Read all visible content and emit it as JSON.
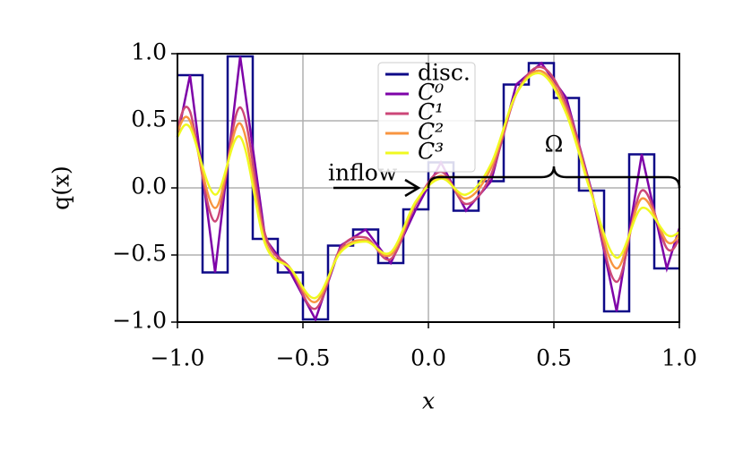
{
  "chart_data": {
    "type": "line",
    "xlabel": "x",
    "ylabel": "q(x)",
    "xlim": [
      -1,
      1
    ],
    "ylim": [
      -1,
      1
    ],
    "xticks": [
      {
        "value": -1,
        "label": "−1.0"
      },
      {
        "value": -0.5,
        "label": "−0.5"
      },
      {
        "value": 0,
        "label": "0.0"
      },
      {
        "value": 0.5,
        "label": "0.5"
      },
      {
        "value": 1,
        "label": "1.0"
      }
    ],
    "yticks": [
      {
        "value": -1,
        "label": "−1.0"
      },
      {
        "value": -0.5,
        "label": "−0.5"
      },
      {
        "value": 0,
        "label": "0.0"
      },
      {
        "value": 0.5,
        "label": "0.5"
      },
      {
        "value": 1,
        "label": "1.0"
      }
    ],
    "grid": true,
    "legend": "upper center",
    "annotations": [
      "inflow",
      "Ω"
    ],
    "series": [
      {
        "name": "disc.",
        "color": "#0d0887",
        "x": [
          -1,
          -0.9,
          -0.9,
          -0.8,
          -0.8,
          -0.7,
          -0.7,
          -0.6,
          -0.6,
          -0.5,
          -0.5,
          -0.4,
          -0.4,
          -0.3,
          -0.3,
          -0.2,
          -0.2,
          -0.1,
          -0.1,
          0,
          0,
          0.1,
          0.1,
          0.2,
          0.2,
          0.3,
          0.3,
          0.4,
          0.4,
          0.5,
          0.5,
          0.6,
          0.6,
          0.7,
          0.7,
          0.8,
          0.8,
          0.9,
          0.9,
          1
        ],
        "values": [
          0.84,
          0.84,
          -0.63,
          -0.63,
          0.98,
          0.98,
          -0.38,
          -0.38,
          -0.63,
          -0.63,
          -0.98,
          -0.98,
          -0.43,
          -0.43,
          -0.31,
          -0.31,
          -0.56,
          -0.56,
          -0.16,
          -0.16,
          0.19,
          0.19,
          -0.17,
          -0.17,
          0.05,
          0.05,
          0.77,
          0.77,
          0.93,
          0.93,
          0.67,
          0.67,
          -0.02,
          -0.02,
          -0.92,
          -0.92,
          0.25,
          0.25,
          -0.6,
          -0.6
        ]
      },
      {
        "name": "C⁰",
        "color": "#7e03a8",
        "x": [
          -1,
          -0.95,
          -0.85,
          -0.75,
          -0.65,
          -0.55,
          -0.45,
          -0.35,
          -0.25,
          -0.15,
          -0.05,
          0.05,
          0.15,
          0.25,
          0.35,
          0.45,
          0.55,
          0.65,
          0.75,
          0.85,
          0.95,
          1
        ],
        "values": [
          0.38,
          0.84,
          -0.63,
          0.98,
          -0.38,
          -0.63,
          -0.98,
          -0.43,
          -0.31,
          -0.56,
          -0.16,
          0.19,
          -0.17,
          0.05,
          0.77,
          0.93,
          0.67,
          -0.02,
          -0.92,
          0.25,
          -0.6,
          -0.3
        ]
      },
      {
        "name": "C¹",
        "color": "#cc4778",
        "x": [
          -1,
          -0.95,
          -0.85,
          -0.75,
          -0.65,
          -0.55,
          -0.45,
          -0.35,
          -0.25,
          -0.15,
          -0.05,
          0.05,
          0.15,
          0.25,
          0.35,
          0.45,
          0.55,
          0.65,
          0.75,
          0.85,
          0.95,
          1
        ],
        "values": [
          0.45,
          0.57,
          -0.25,
          0.6,
          -0.35,
          -0.6,
          -0.9,
          -0.45,
          -0.37,
          -0.53,
          -0.12,
          0.12,
          -0.12,
          0.1,
          0.7,
          0.9,
          0.62,
          -0.03,
          -0.7,
          -0.02,
          -0.45,
          -0.38
        ]
      },
      {
        "name": "C²",
        "color": "#f89540",
        "x": [
          -1,
          -0.95,
          -0.85,
          -0.75,
          -0.65,
          -0.55,
          -0.45,
          -0.35,
          -0.25,
          -0.15,
          -0.05,
          0.05,
          0.15,
          0.25,
          0.35,
          0.45,
          0.55,
          0.65,
          0.75,
          0.85,
          0.95,
          1
        ],
        "values": [
          0.42,
          0.5,
          -0.15,
          0.48,
          -0.4,
          -0.6,
          -0.85,
          -0.47,
          -0.39,
          -0.5,
          -0.11,
          0.09,
          -0.08,
          0.15,
          0.7,
          0.87,
          0.58,
          -0.04,
          -0.6,
          -0.08,
          -0.4,
          -0.35
        ]
      },
      {
        "name": "C³",
        "color": "#f0f921",
        "x": [
          -1,
          -0.95,
          -0.85,
          -0.75,
          -0.65,
          -0.55,
          -0.45,
          -0.35,
          -0.25,
          -0.15,
          -0.05,
          0.05,
          0.15,
          0.25,
          0.35,
          0.45,
          0.55,
          0.65,
          0.75,
          0.85,
          0.95,
          1
        ],
        "values": [
          0.38,
          0.45,
          -0.05,
          0.38,
          -0.42,
          -0.6,
          -0.82,
          -0.48,
          -0.4,
          -0.48,
          -0.1,
          0.07,
          -0.05,
          0.18,
          0.7,
          0.85,
          0.55,
          -0.05,
          -0.52,
          -0.15,
          -0.35,
          -0.33
        ]
      }
    ]
  }
}
